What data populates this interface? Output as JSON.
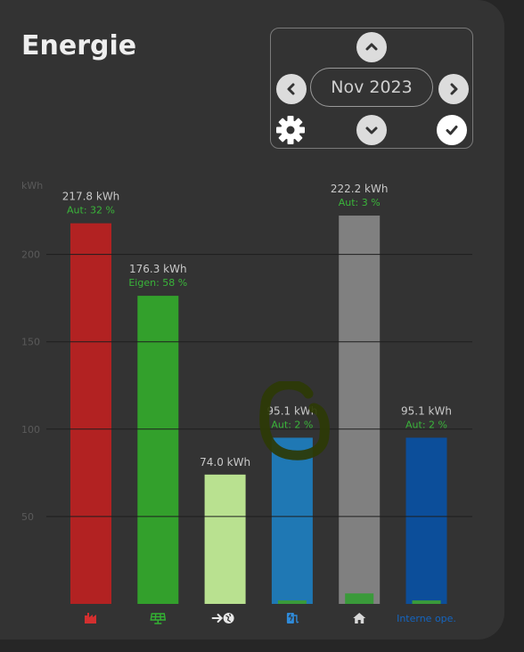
{
  "header": {
    "title": "Energie"
  },
  "picker": {
    "month": "Nov 2023",
    "icons": [
      "chevron-up-icon",
      "chevron-left-icon",
      "chevron-right-icon",
      "chevron-down-icon",
      "gear-icon",
      "check-icon"
    ]
  },
  "colors": {
    "background": "#333333",
    "grid": "#1e1e1e",
    "label": "#c8c8c8",
    "percent": "#3ab53a",
    "marker": "#2d3a05"
  },
  "chart_data": {
    "type": "bar",
    "ylabel": "kWh",
    "ylim": [
      0,
      250
    ],
    "yticks": [
      50,
      100,
      150,
      200
    ],
    "grid": true,
    "categories": [
      "grid-import",
      "solar",
      "grid-export",
      "ev-charger",
      "house",
      "Interne ope."
    ],
    "category_icons": [
      "factory-icon",
      "solar-panel-icon",
      "export-grid-icon",
      "ev-charger-icon",
      "house-icon",
      null
    ],
    "values": [
      217.8,
      176.3,
      74.0,
      95.1,
      222.2,
      95.1
    ],
    "value_labels": [
      "217.8 kWh",
      "176.3 kWh",
      "74.0 kWh",
      "95.1 kWh",
      "222.2 kWh",
      "95.1 kWh"
    ],
    "percent_labels": [
      "Aut: 32 %",
      "Eigen: 58 %",
      "",
      "Aut: 2 %",
      "Aut: 3 %",
      "Aut: 2 %"
    ],
    "inner_values": [
      0,
      0,
      0,
      2.0,
      6.0,
      2.0
    ],
    "bar_colors": [
      "#b22222",
      "#33a02c",
      "#b9e190",
      "#1f78b4",
      "#808080",
      "#0c4e9a"
    ],
    "icon_colors": [
      "#d32f2f",
      "#33b233",
      "#e8e8e8",
      "#2f8ad8",
      "#d8d8d8",
      "#1565c0"
    ]
  }
}
